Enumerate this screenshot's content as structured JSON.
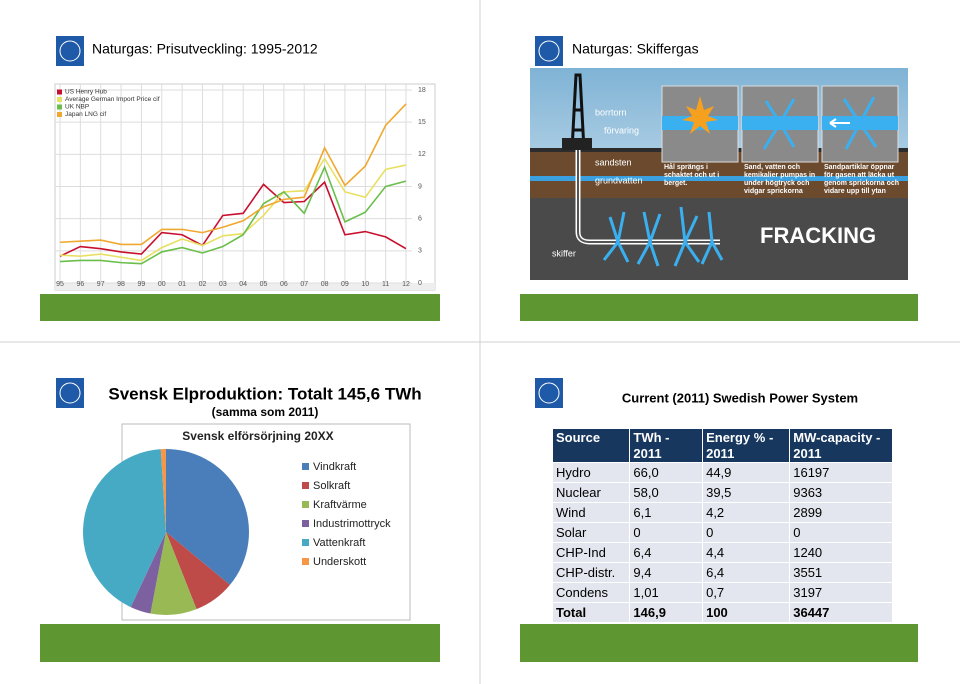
{
  "slides": [
    {
      "title": "Naturgas: Prisutveckling: 1995-2012"
    },
    {
      "title": "Naturgas: Skiffergas",
      "labels": [
        "borrtorn",
        "förvaring",
        "sandsten",
        "grundvatten",
        "skiffer",
        "FRACKING"
      ],
      "captions": [
        "Hål sprängs i schaktet och ut i berget.",
        "Sand, vatten och kemikalier pumpas in under högtryck och vidgar sprickorna",
        "Sandpartiklar öppnar för gasen att läcka ut genom sprickorna och vidare upp till ytan"
      ]
    },
    {
      "title": "Svensk Elproduktion: Totalt 145,6 TWh",
      "subtitle": "(samma som 2011)"
    },
    {
      "title": "Current (2011) Swedish Power System",
      "table": {
        "header": [
          "Source",
          "TWh - 2011",
          "Energy % - 2011",
          "MW-capacity - 2011"
        ],
        "rows": [
          [
            "Hydro",
            "66,0",
            "44,9",
            "16197"
          ],
          [
            "Nuclear",
            "58,0",
            "39,5",
            "9363"
          ],
          [
            "Wind",
            "6,1",
            "4,2",
            "2899"
          ],
          [
            "Solar",
            "0",
            "0",
            "0"
          ],
          [
            "CHP-Ind",
            "6,4",
            "4,4",
            "1240"
          ],
          [
            "CHP-distr.",
            "9,4",
            "6,4",
            "3551"
          ],
          [
            "Condens",
            "1,01",
            "0,7",
            "3197"
          ],
          [
            "Total",
            "146,9",
            "100",
            "36447"
          ]
        ]
      }
    }
  ],
  "chart_data": [
    {
      "type": "line",
      "categories": [
        "95",
        "96",
        "97",
        "98",
        "99",
        "00",
        "01",
        "02",
        "03",
        "04",
        "05",
        "06",
        "07",
        "08",
        "09",
        "10",
        "11",
        "12"
      ],
      "series": [
        {
          "name": "US Henry Hub",
          "color": "#c8102e",
          "values": [
            2.5,
            3.4,
            3.2,
            2.9,
            2.7,
            4.7,
            4.5,
            3.5,
            6.3,
            6.5,
            9.2,
            7.5,
            7.6,
            9.4,
            4.5,
            4.8,
            4.3,
            3.2
          ]
        },
        {
          "name": "Average German Import Price cif",
          "color": "#e8e060",
          "values": [
            2.6,
            2.5,
            2.7,
            2.4,
            2.1,
            3.3,
            4.1,
            3.5,
            4.4,
            4.6,
            6.3,
            8.5,
            8.6,
            11.6,
            8.5,
            8.0,
            10.6,
            11.0
          ]
        },
        {
          "name": "UK NBP",
          "color": "#6abf4b",
          "values": [
            2.0,
            2.1,
            2.1,
            1.9,
            1.8,
            2.9,
            3.3,
            2.8,
            3.4,
            4.5,
            7.4,
            8.5,
            6.5,
            10.8,
            5.7,
            6.6,
            9.0,
            9.5
          ]
        },
        {
          "name": "Japan LNG cif",
          "color": "#f0a830",
          "values": [
            3.8,
            3.9,
            4.0,
            3.6,
            3.6,
            5.0,
            5.0,
            4.7,
            5.2,
            5.8,
            7.1,
            7.8,
            8.0,
            12.6,
            9.1,
            10.9,
            14.7,
            16.7
          ]
        }
      ],
      "ylim": [
        0,
        18
      ],
      "yticks": [
        0,
        3,
        6,
        9,
        12,
        15,
        18
      ],
      "grid": true,
      "legend": "upper left"
    },
    {
      "type": "pie",
      "title": "Svensk elförsörjning 20XX",
      "categories": [
        "Vindkraft",
        "Solkraft",
        "Kraftvärme",
        "Industrimottryck",
        "Vattenkraft",
        "Underskott"
      ],
      "values": [
        36,
        8,
        9,
        4,
        42,
        1
      ],
      "colors": [
        "#4a7ebb",
        "#be4b48",
        "#98b954",
        "#7d60a0",
        "#46aac5",
        "#f79646"
      ]
    }
  ]
}
